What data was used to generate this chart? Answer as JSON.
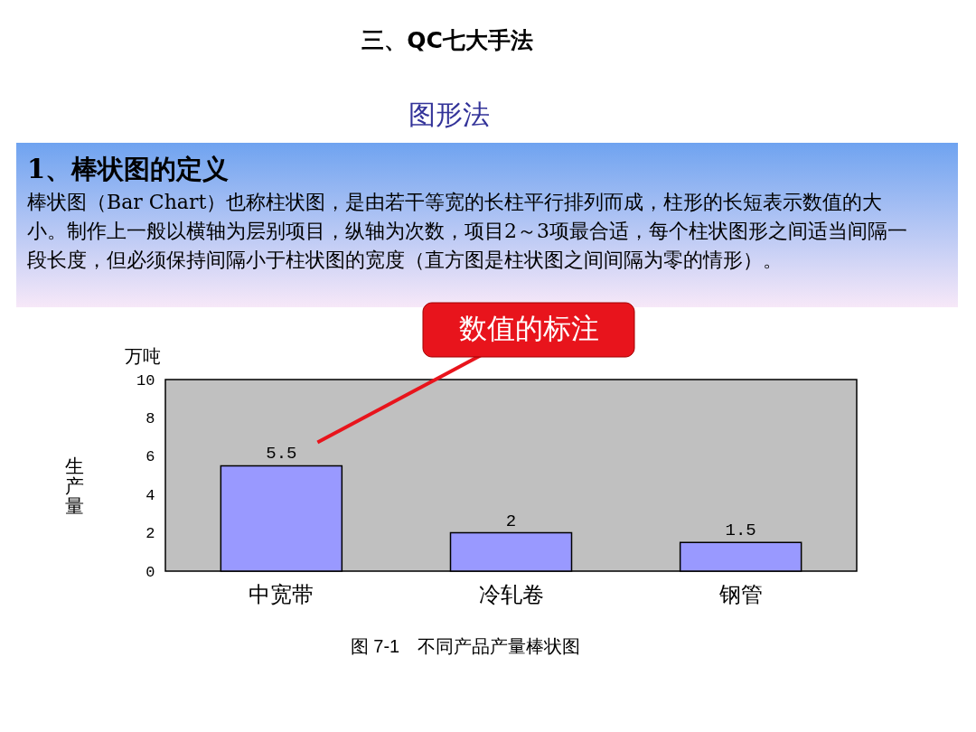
{
  "chart_data": {
    "type": "bar",
    "title": "三、QC七大手法",
    "subtitle": "图形法",
    "ylabel": "生产量",
    "categories": [
      "中宽带",
      "冷轧卷",
      "钢管"
    ],
    "values": [
      5.5,
      2,
      1.5
    ],
    "color": "#9999ff",
    "ylim": [
      0,
      10
    ],
    "yticks": [
      0,
      2,
      4,
      6,
      8,
      10
    ],
    "data_labels": true,
    "annotations": [
      "1、棒状图的定义",
      "棒状图（Bar Chart）也称柱状图，是由若干等宽的长柱平行排列而成，柱形的长短表示数值的大小。制作上一般以横轴为层别项目，纵轴为次数，项目2～3项最合适，每个柱状图形之间适当间隔一段长度，但必须保持间隔小于柱状图的宽度（直方图是柱状图之间间隔为零的情形）。",
      "万吨",
      "图 7-1　不同产品产量棒状图",
      "数值的标注"
    ]
  }
}
